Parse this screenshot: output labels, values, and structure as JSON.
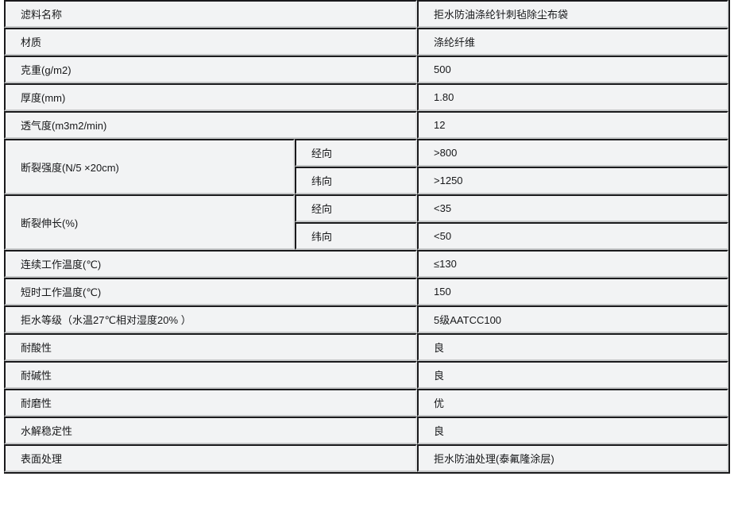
{
  "page": {
    "background": "#ffffff",
    "colors": {
      "cell_bg": "#f2f3f4",
      "border_dark": "#1a1a1c",
      "border_light": "#c6c8c9",
      "text": "#17181a"
    }
  },
  "table": {
    "rows": [
      {
        "label": "滤料名称",
        "value": "拒水防油涤纶针刺毡除尘布袋"
      },
      {
        "label": "材质",
        "value": "涤纶纤维"
      },
      {
        "label": "克重(g/m2)",
        "value": "500"
      },
      {
        "label": "厚度(mm)",
        "value": "1.80"
      },
      {
        "label": "透气度(m3m2/min)",
        "value": "12"
      },
      {
        "label": "断裂强度(N/5 ×20cm)",
        "sub": [
          {
            "direction": "经向",
            "value": ">800"
          },
          {
            "direction": "纬向",
            "value": ">1250"
          }
        ]
      },
      {
        "label": "断裂伸长(%)",
        "sub": [
          {
            "direction": "经向",
            "value": "<35"
          },
          {
            "direction": "纬向",
            "value": "<50"
          }
        ]
      },
      {
        "label": "连续工作温度(℃)",
        "value": "≤130"
      },
      {
        "label": "短时工作温度(℃)",
        "value": "150"
      },
      {
        "label": "拒水等级（水温27℃相对湿度20% ）",
        "value": "5级AATCC100"
      },
      {
        "label": "耐酸性",
        "value": "良"
      },
      {
        "label": "耐碱性",
        "value": "良"
      },
      {
        "label": "耐磨性",
        "value": "优"
      },
      {
        "label": "水解稳定性",
        "value": "良"
      },
      {
        "label": "表面处理",
        "value": "拒水防油处理(泰氟隆涂层)"
      }
    ]
  }
}
